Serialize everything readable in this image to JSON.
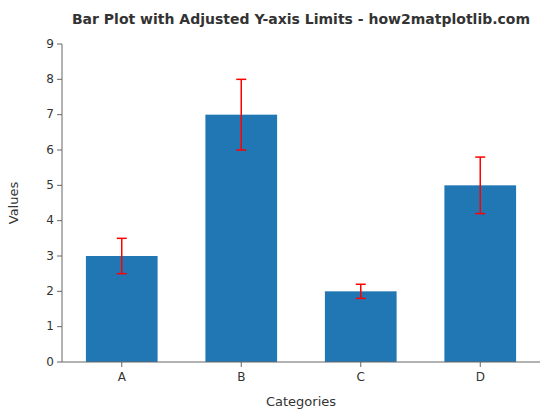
{
  "chart_data": {
    "type": "bar",
    "title": "Bar Plot with Adjusted Y-axis Limits - how2matplotlib.com",
    "xlabel": "Categories",
    "ylabel": "Values",
    "categories": [
      "A",
      "B",
      "C",
      "D"
    ],
    "values": [
      3,
      7,
      2,
      5
    ],
    "errors": [
      0.5,
      1.0,
      0.2,
      0.8
    ],
    "color": "#2077b4",
    "ylim": [
      0,
      9
    ],
    "yticks": [
      0,
      1,
      2,
      3,
      4,
      5,
      6,
      7,
      8,
      9
    ],
    "grid": false
  }
}
